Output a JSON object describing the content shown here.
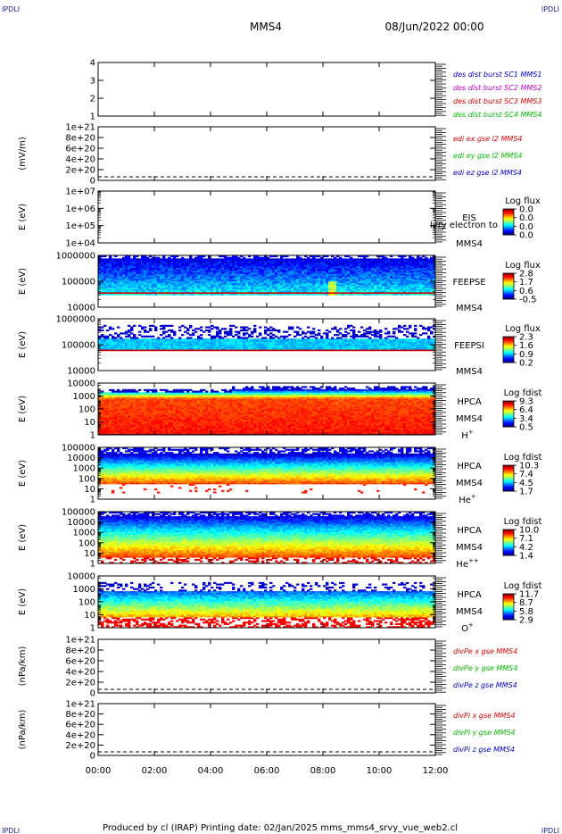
{
  "header": {
    "corner_left": "IPDLI",
    "corner_right": "IPDLI",
    "spacecraft": "MMS4",
    "datetime": "08/Jun/2022 00:00"
  },
  "footer": {
    "text": "Produced by cl (IRAP)   Printing date: 02/Jan/2025   mms_mms4_srvy_vue_web2.cl",
    "corner_left": "IPDLI",
    "corner_right": "IPDLI"
  },
  "colors": {
    "mms1": "#0000cc",
    "mms2": "#cc00cc",
    "mms3": "#dd0000",
    "mms4": "#00bb00",
    "x": "#dd0000",
    "y": "#00bb00",
    "z": "#0000cc"
  },
  "chart_data": {
    "type": "heatmap",
    "x_ticks": [
      "00:00",
      "02:00",
      "04:00",
      "06:00",
      "08:00",
      "10:00",
      "12:00"
    ],
    "x_range": [
      "00:00",
      "12:00"
    ],
    "panels": [
      {
        "kind": "line",
        "ylabel": "",
        "yticks": [
          "4",
          "3",
          "2",
          "1"
        ],
        "yrange": [
          0.5,
          4.5
        ],
        "legend": [
          {
            "text": "des dist burst SC1 MMS1",
            "color": "mms1"
          },
          {
            "text": "des dist burst SC2 MMS2",
            "color": "mms2"
          },
          {
            "text": "des dist burst SC3 MMS3",
            "color": "mms3"
          },
          {
            "text": "des dist burst SC4 MMS4",
            "color": "mms4"
          }
        ]
      },
      {
        "kind": "line",
        "ylabel": "(mV/m)",
        "yticks": [
          "1e+21",
          "8e+20",
          "6e+20",
          "4e+20",
          "2e+20",
          "0"
        ],
        "yrange": [
          0,
          1e+21
        ],
        "dashed_zero": true,
        "legend": [
          {
            "text": "edi ex gse l2 MMS4",
            "color": "x"
          },
          {
            "text": "edi ey gse l2 MMS4",
            "color": "y"
          },
          {
            "text": "edi ez gse l2 MMS4",
            "color": "z"
          }
        ]
      },
      {
        "kind": "spectrogram",
        "ylabel": "E (eV)",
        "yticks": [
          "1e+07",
          "1e+06",
          "1e+05",
          "1e+04"
        ],
        "ylog": [
          4,
          7
        ],
        "instrument": [
          "EIS",
          "MMS4"
        ],
        "overlay": "lvry electron to",
        "colorbar_title": "Log flux",
        "colorbar_ticks": [
          "0.0",
          "0.0",
          "0.0",
          "0.0"
        ],
        "data": "empty"
      },
      {
        "kind": "spectrogram",
        "ylabel": "E (eV)",
        "yticks": [
          "1000000",
          "100000",
          "10000"
        ],
        "ylog": [
          4,
          6
        ],
        "instrument": [
          "FEEPSE",
          "MMS4"
        ],
        "colorbar_title": "Log flux",
        "colorbar_ticks": [
          "2.8",
          "1.7",
          "0.6",
          "-0.5"
        ],
        "profile": "feepse"
      },
      {
        "kind": "spectrogram",
        "ylabel": "E (eV)",
        "yticks": [
          "1000000",
          "100000",
          "10000"
        ],
        "ylog": [
          4,
          6
        ],
        "instrument": [
          "FEEPSI",
          "MMS4"
        ],
        "colorbar_title": "Log flux",
        "colorbar_ticks": [
          "2.3",
          "1.6",
          "0.9",
          "0.2"
        ],
        "profile": "feepsi"
      },
      {
        "kind": "spectrogram",
        "ylabel": "E (eV)",
        "yticks": [
          "10000",
          "1000",
          "100",
          "10",
          "1"
        ],
        "ylog": [
          0,
          4.5
        ],
        "instrument": [
          "HPCA",
          "MMS4"
        ],
        "species": "H",
        "species_sup": "+",
        "colorbar_title": "Log fdist",
        "colorbar_ticks": [
          "9.3",
          "6.4",
          "3.4",
          "0.5"
        ],
        "profile": "hplus"
      },
      {
        "kind": "spectrogram",
        "ylabel": "E (eV)",
        "yticks": [
          "100000",
          "10000",
          "1000",
          "100",
          "10",
          "1"
        ],
        "ylog": [
          0,
          5
        ],
        "instrument": [
          "HPCA",
          "MMS4"
        ],
        "species": "He",
        "species_sup": "+",
        "colorbar_title": "Log fdist",
        "colorbar_ticks": [
          "10.3",
          "7.4",
          "4.5",
          "1.7"
        ],
        "profile": "heplus"
      },
      {
        "kind": "spectrogram",
        "ylabel": "E (eV)",
        "yticks": [
          "100000",
          "10000",
          "1000",
          "100",
          "10",
          "1"
        ],
        "ylog": [
          0,
          5
        ],
        "instrument": [
          "HPCA",
          "MMS4"
        ],
        "species": "He",
        "species_sup": "++",
        "colorbar_title": "Log fdist",
        "colorbar_ticks": [
          "10.0",
          "7.1",
          "4.2",
          "1.4"
        ],
        "profile": "heplusplus"
      },
      {
        "kind": "spectrogram",
        "ylabel": "E (eV)",
        "yticks": [
          "10000",
          "1000",
          "100",
          "10",
          "1"
        ],
        "ylog": [
          0,
          4.5
        ],
        "instrument": [
          "HPCA",
          "MMS4"
        ],
        "species": "O",
        "species_sup": "+",
        "colorbar_title": "Log fdist",
        "colorbar_ticks": [
          "11.7",
          "8.7",
          "5.8",
          "2.9"
        ],
        "profile": "oplus"
      },
      {
        "kind": "line",
        "ylabel": "(nPa/km)",
        "yticks": [
          "1e+21",
          "8e+20",
          "6e+20",
          "4e+20",
          "2e+20",
          "0"
        ],
        "yrange": [
          0,
          1e+21
        ],
        "dashed_zero": true,
        "legend": [
          {
            "text": "divPe x gse MMS4",
            "color": "x"
          },
          {
            "text": "divPe y gse MMS4",
            "color": "y"
          },
          {
            "text": "divPe z gse MMS4",
            "color": "z"
          }
        ]
      },
      {
        "kind": "line",
        "ylabel": "(nPa/km)",
        "yticks": [
          "1e+21",
          "8e+20",
          "6e+20",
          "4e+20",
          "2e+20",
          "0"
        ],
        "yrange": [
          0,
          1e+21
        ],
        "dashed_zero": true,
        "legend": [
          {
            "text": "divPi x gse MMS4",
            "color": "x"
          },
          {
            "text": "divPi y gse MMS4",
            "color": "y"
          },
          {
            "text": "divPi z gse MMS4",
            "color": "z"
          }
        ]
      }
    ]
  }
}
